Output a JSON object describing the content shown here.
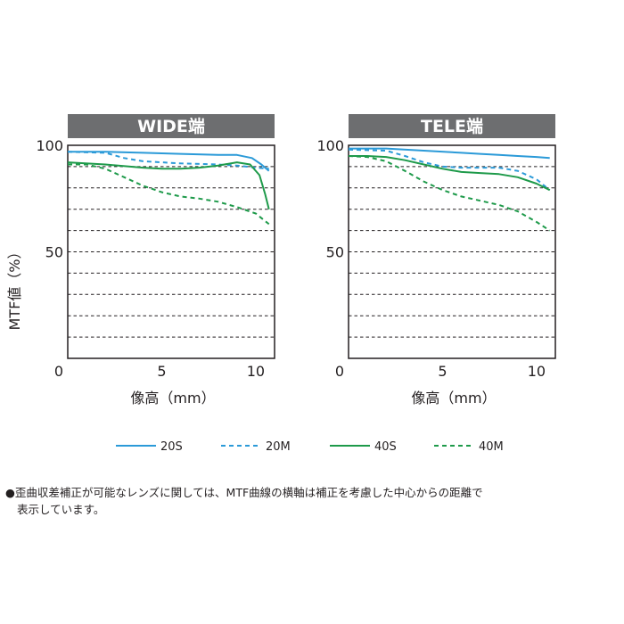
{
  "chart_data": [
    {
      "type": "line",
      "title": "WIDE端",
      "xlabel": "像高（mm）",
      "ylabel": "MTF値（%）",
      "xlim": [
        0,
        11
      ],
      "ylim": [
        0,
        100
      ],
      "xticks": [
        "0",
        "5",
        "10"
      ],
      "yticks": [
        "100",
        "50"
      ],
      "grid": "horizontal dashed every 10%",
      "series": [
        {
          "name": "20S",
          "color": "#2b9ad8",
          "dash": "solid",
          "x": [
            0,
            2,
            4,
            6,
            8,
            9,
            9.8,
            10.3,
            10.7
          ],
          "y": [
            97,
            97,
            96.5,
            96,
            95.5,
            95.5,
            94,
            91,
            88
          ]
        },
        {
          "name": "20M",
          "color": "#2b9ad8",
          "dash": "dashed",
          "x": [
            0,
            2,
            3,
            4,
            6,
            8,
            9,
            10,
            10.7
          ],
          "y": [
            97,
            96.5,
            94,
            92.5,
            91.5,
            91,
            90.5,
            89.5,
            89
          ]
        },
        {
          "name": "40S",
          "color": "#1e9a4a",
          "dash": "solid",
          "x": [
            0,
            2,
            4,
            5,
            6,
            7,
            8,
            9,
            9.7,
            10.2,
            10.5,
            10.7
          ],
          "y": [
            92,
            91,
            89.5,
            89,
            89,
            89.5,
            90.5,
            92,
            91,
            86,
            77,
            70
          ]
        },
        {
          "name": "40M",
          "color": "#1e9a4a",
          "dash": "dashed",
          "x": [
            0,
            1,
            2,
            3,
            4,
            5,
            6,
            7,
            8,
            9,
            10,
            10.7
          ],
          "y": [
            91,
            91,
            89,
            85,
            81,
            78,
            76,
            75,
            73.5,
            71,
            68,
            63
          ]
        }
      ]
    },
    {
      "type": "line",
      "title": "TELE端",
      "xlabel": "像高（mm）",
      "ylabel": "",
      "xlim": [
        0,
        11
      ],
      "ylim": [
        0,
        100
      ],
      "xticks": [
        "0",
        "5",
        "10"
      ],
      "yticks": [
        "100",
        "50"
      ],
      "grid": "horizontal dashed every 10%",
      "series": [
        {
          "name": "20S",
          "color": "#2b9ad8",
          "dash": "solid",
          "x": [
            0,
            2,
            4,
            6,
            7,
            8,
            9,
            10,
            10.7
          ],
          "y": [
            98.5,
            98.5,
            97.5,
            96.5,
            96,
            95.5,
            95,
            94.5,
            94
          ]
        },
        {
          "name": "20M",
          "color": "#2b9ad8",
          "dash": "dashed",
          "x": [
            0,
            2,
            3,
            4,
            5,
            6,
            7,
            8,
            9,
            10,
            10.7
          ],
          "y": [
            98,
            97.5,
            95,
            92,
            90,
            89.5,
            89.5,
            89.5,
            88,
            84,
            79
          ]
        },
        {
          "name": "40S",
          "color": "#1e9a4a",
          "dash": "solid",
          "x": [
            0,
            1,
            2,
            3,
            4,
            5,
            6,
            7,
            8,
            9,
            10,
            10.7
          ],
          "y": [
            95,
            95,
            94.5,
            93,
            91,
            89,
            87.5,
            87,
            86.5,
            85,
            82,
            79
          ]
        },
        {
          "name": "40M",
          "color": "#1e9a4a",
          "dash": "dashed",
          "x": [
            0,
            1,
            2,
            3,
            4,
            5,
            6,
            7,
            8,
            9,
            10,
            10.7
          ],
          "y": [
            95,
            94.5,
            92.5,
            88,
            83,
            79,
            76,
            74,
            72,
            69,
            64,
            60
          ]
        }
      ]
    }
  ],
  "legend": [
    {
      "label": "20S",
      "color": "#2b9ad8",
      "dash": "solid"
    },
    {
      "label": "20M",
      "color": "#2b9ad8",
      "dash": "dashed"
    },
    {
      "label": "40S",
      "color": "#1e9a4a",
      "dash": "solid"
    },
    {
      "label": "40M",
      "color": "#1e9a4a",
      "dash": "dashed"
    }
  ],
  "footnote": {
    "line1": "●歪曲収差補正が可能なレンズに関しては、MTF曲線の横軸は補正を考慮した中心からの距離で",
    "line2": "表示しています。"
  },
  "colors": {
    "title_bar": "#6d6e70",
    "grid": "#231f20",
    "text": "#231f20"
  }
}
